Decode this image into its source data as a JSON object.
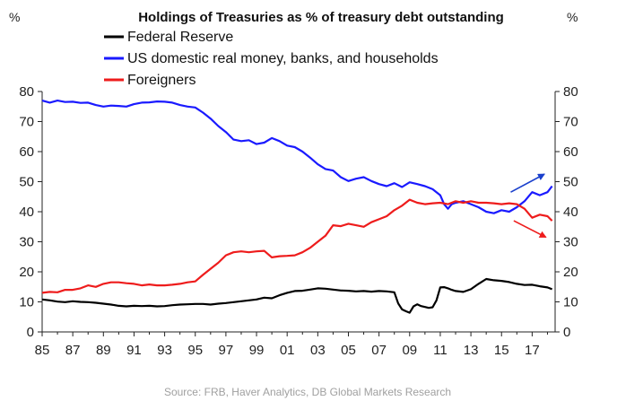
{
  "chart_data": {
    "type": "line",
    "title": "Holdings of Treasuries as % of treasury debt outstanding",
    "left_axis_unit": "%",
    "right_axis_unit": "%",
    "source": "Source: FRB, Haver Analytics, DB Global Markets Research",
    "ylim": [
      0,
      80
    ],
    "y_ticks": [
      "0",
      "10",
      "20",
      "30",
      "40",
      "50",
      "60",
      "70",
      "80"
    ],
    "xlim": [
      1985,
      2018.5
    ],
    "x_ticks": [
      "85",
      "87",
      "89",
      "91",
      "93",
      "95",
      "97",
      "99",
      "01",
      "03",
      "05",
      "07",
      "09",
      "11",
      "13",
      "15",
      "17"
    ],
    "grid": false,
    "legend_position": "top-left",
    "series": [
      {
        "name": "Federal Reserve",
        "color": "#000000",
        "x": [
          1985,
          1985.5,
          1986,
          1986.5,
          1987,
          1987.5,
          1988,
          1988.5,
          1989,
          1989.5,
          1990,
          1990.5,
          1991,
          1991.5,
          1992,
          1992.5,
          1993,
          1993.5,
          1994,
          1994.5,
          1995,
          1995.5,
          1996,
          1996.5,
          1997,
          1997.5,
          1998,
          1998.5,
          1999,
          1999.5,
          2000,
          2000.5,
          2001,
          2001.5,
          2002,
          2002.5,
          2003,
          2003.5,
          2004,
          2004.5,
          2005,
          2005.5,
          2006,
          2006.5,
          2007,
          2007.5,
          2008,
          2008.25,
          2008.5,
          2008.75,
          2009,
          2009.25,
          2009.5,
          2009.75,
          2010,
          2010.25,
          2010.5,
          2010.75,
          2011,
          2011.25,
          2011.5,
          2011.75,
          2012,
          2012.5,
          2013,
          2013.5,
          2014,
          2014.5,
          2015,
          2015.5,
          2016,
          2016.5,
          2017,
          2017.5,
          2018,
          2018.3
        ],
        "values": [
          10.8,
          10.5,
          10.1,
          9.9,
          10.2,
          10.0,
          9.9,
          9.7,
          9.4,
          9.1,
          8.7,
          8.5,
          8.7,
          8.6,
          8.7,
          8.5,
          8.6,
          8.9,
          9.1,
          9.2,
          9.3,
          9.3,
          9.1,
          9.4,
          9.6,
          9.9,
          10.2,
          10.5,
          10.8,
          11.4,
          11.2,
          12.2,
          13.0,
          13.6,
          13.7,
          14.1,
          14.5,
          14.4,
          14.1,
          13.8,
          13.7,
          13.5,
          13.6,
          13.4,
          13.6,
          13.5,
          13.2,
          9.5,
          7.5,
          6.9,
          6.4,
          8.5,
          9.2,
          8.6,
          8.3,
          8.0,
          8.2,
          10.5,
          14.8,
          14.9,
          14.5,
          14.0,
          13.6,
          13.3,
          14.2,
          16.0,
          17.6,
          17.2,
          17.0,
          16.6,
          16.0,
          15.6,
          15.7,
          15.2,
          14.8,
          14.2
        ]
      },
      {
        "name": "US domestic real money, banks, and households",
        "color": "#1a1aff",
        "x": [
          1985,
          1985.5,
          1986,
          1986.5,
          1987,
          1987.5,
          1988,
          1988.5,
          1989,
          1989.5,
          1990,
          1990.5,
          1991,
          1991.5,
          1992,
          1992.5,
          1993,
          1993.5,
          1994,
          1994.5,
          1995,
          1995.5,
          1996,
          1996.5,
          1997,
          1997.5,
          1998,
          1998.5,
          1999,
          1999.5,
          2000,
          2000.5,
          2001,
          2001.5,
          2002,
          2002.5,
          2003,
          2003.5,
          2004,
          2004.5,
          2005,
          2005.5,
          2006,
          2006.5,
          2007,
          2007.5,
          2008,
          2008.5,
          2009,
          2009.5,
          2010,
          2010.5,
          2011,
          2011.25,
          2011.5,
          2011.75,
          2012,
          2012.5,
          2013,
          2013.5,
          2014,
          2014.5,
          2015,
          2015.5,
          2016,
          2016.5,
          2017,
          2017.5,
          2018,
          2018.3
        ],
        "values": [
          77.0,
          76.3,
          77.0,
          76.5,
          76.6,
          76.2,
          76.3,
          75.5,
          75.0,
          75.3,
          75.2,
          75.0,
          75.8,
          76.3,
          76.4,
          76.7,
          76.6,
          76.3,
          75.5,
          75.0,
          74.7,
          73.0,
          71.0,
          68.5,
          66.5,
          64.0,
          63.5,
          63.8,
          62.5,
          63.0,
          64.5,
          63.5,
          62.0,
          61.5,
          60.0,
          58.0,
          55.8,
          54.2,
          53.7,
          51.5,
          50.2,
          51.0,
          51.5,
          50.2,
          49.2,
          48.5,
          49.5,
          48.2,
          49.8,
          49.2,
          48.5,
          47.5,
          45.5,
          42.5,
          41.0,
          42.5,
          43.0,
          43.5,
          42.5,
          41.5,
          40.0,
          39.5,
          40.5,
          40.0,
          41.5,
          43.5,
          46.5,
          45.5,
          46.5,
          48.5
        ]
      },
      {
        "name": "Foreigners",
        "color": "#ee1c1c",
        "x": [
          1985,
          1985.5,
          1986,
          1986.5,
          1987,
          1987.5,
          1988,
          1988.5,
          1989,
          1989.5,
          1990,
          1990.5,
          1991,
          1991.5,
          1992,
          1992.5,
          1993,
          1993.5,
          1994,
          1994.5,
          1995,
          1995.5,
          1996,
          1996.5,
          1997,
          1997.5,
          1998,
          1998.5,
          1999,
          1999.5,
          2000,
          2000.5,
          2001,
          2001.5,
          2002,
          2002.5,
          2003,
          2003.5,
          2004,
          2004.5,
          2005,
          2005.5,
          2006,
          2006.5,
          2007,
          2007.5,
          2008,
          2008.5,
          2009,
          2009.5,
          2010,
          2010.5,
          2011,
          2011.5,
          2012,
          2012.5,
          2013,
          2013.5,
          2014,
          2014.5,
          2015,
          2015.5,
          2016,
          2016.5,
          2017,
          2017.5,
          2018,
          2018.3
        ],
        "values": [
          13.0,
          13.3,
          13.2,
          14.0,
          14.0,
          14.5,
          15.5,
          15.0,
          16.0,
          16.5,
          16.5,
          16.2,
          16.0,
          15.5,
          15.8,
          15.5,
          15.5,
          15.7,
          16.0,
          16.5,
          16.8,
          19.0,
          21.0,
          23.0,
          25.5,
          26.5,
          26.8,
          26.5,
          26.8,
          27.0,
          24.8,
          25.2,
          25.3,
          25.5,
          26.5,
          28.0,
          30.0,
          32.0,
          35.5,
          35.2,
          36.0,
          35.5,
          35.0,
          36.5,
          37.5,
          38.5,
          40.5,
          42.0,
          44.0,
          43.0,
          42.5,
          42.8,
          43.0,
          42.5,
          43.5,
          43.0,
          43.5,
          43.0,
          43.0,
          42.8,
          42.5,
          42.8,
          42.5,
          41.0,
          38.0,
          39.0,
          38.5,
          37.0
        ]
      }
    ],
    "annotations": [
      {
        "type": "arrow",
        "color": "#1a3fcc",
        "from": [
          2015.6,
          46.5
        ],
        "to": [
          2017.8,
          52.5
        ]
      },
      {
        "type": "arrow",
        "color": "#ee1c1c",
        "from": [
          2015.8,
          37.0
        ],
        "to": [
          2017.9,
          31.5
        ]
      }
    ]
  }
}
